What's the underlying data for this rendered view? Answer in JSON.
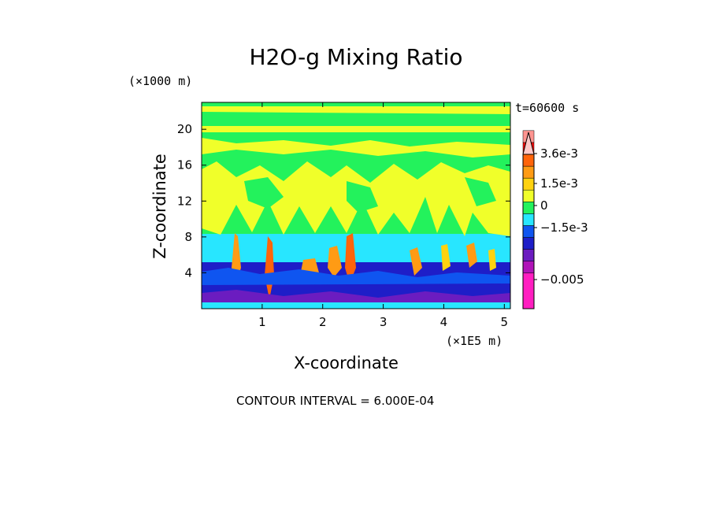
{
  "chart_data": {
    "type": "heatmap",
    "title": "H2O-g Mixing Ratio",
    "xlabel": "X-coordinate",
    "ylabel": "Z-coordinate",
    "x_unit": "(×1E5 m)",
    "z_unit": "(×1000 m)",
    "time_label": "t=60600 s",
    "contour_interval_label": "CONTOUR INTERVAL = 6.000E-04",
    "xlim": [
      0,
      5.1
    ],
    "ylim": [
      0,
      23
    ],
    "x_ticks": [
      1,
      2,
      3,
      4,
      5
    ],
    "y_ticks": [
      4,
      8,
      12,
      16,
      20
    ],
    "colorbar": {
      "colors": [
        "#ff1ec0",
        "#b013b8",
        "#6b1cc0",
        "#1e1ec8",
        "#0f55f0",
        "#28e6ff",
        "#23f25c",
        "#f0ff2a",
        "#ffd20f",
        "#ff9b14",
        "#ff640a",
        "#ff0a0a",
        "#ff9490",
        "#ffc8c8"
      ],
      "tick_labels": [
        "3.6e-3",
        "1.5e-3",
        "0",
        "−1.5e-3",
        "−0.005"
      ],
      "tick_values": [
        0.0036,
        0.0015,
        0,
        -0.0015,
        -0.005
      ]
    },
    "field_bands": [
      {
        "z_from": 0,
        "z_to": 1,
        "level": "dark blue / purple"
      },
      {
        "z_from": 1,
        "z_to": 5.5,
        "level": "blue"
      },
      {
        "z_from": 5.5,
        "z_to": 8,
        "level": "cyan"
      },
      {
        "z_from": 8,
        "z_to": 23,
        "level": "green / yellow"
      }
    ]
  }
}
